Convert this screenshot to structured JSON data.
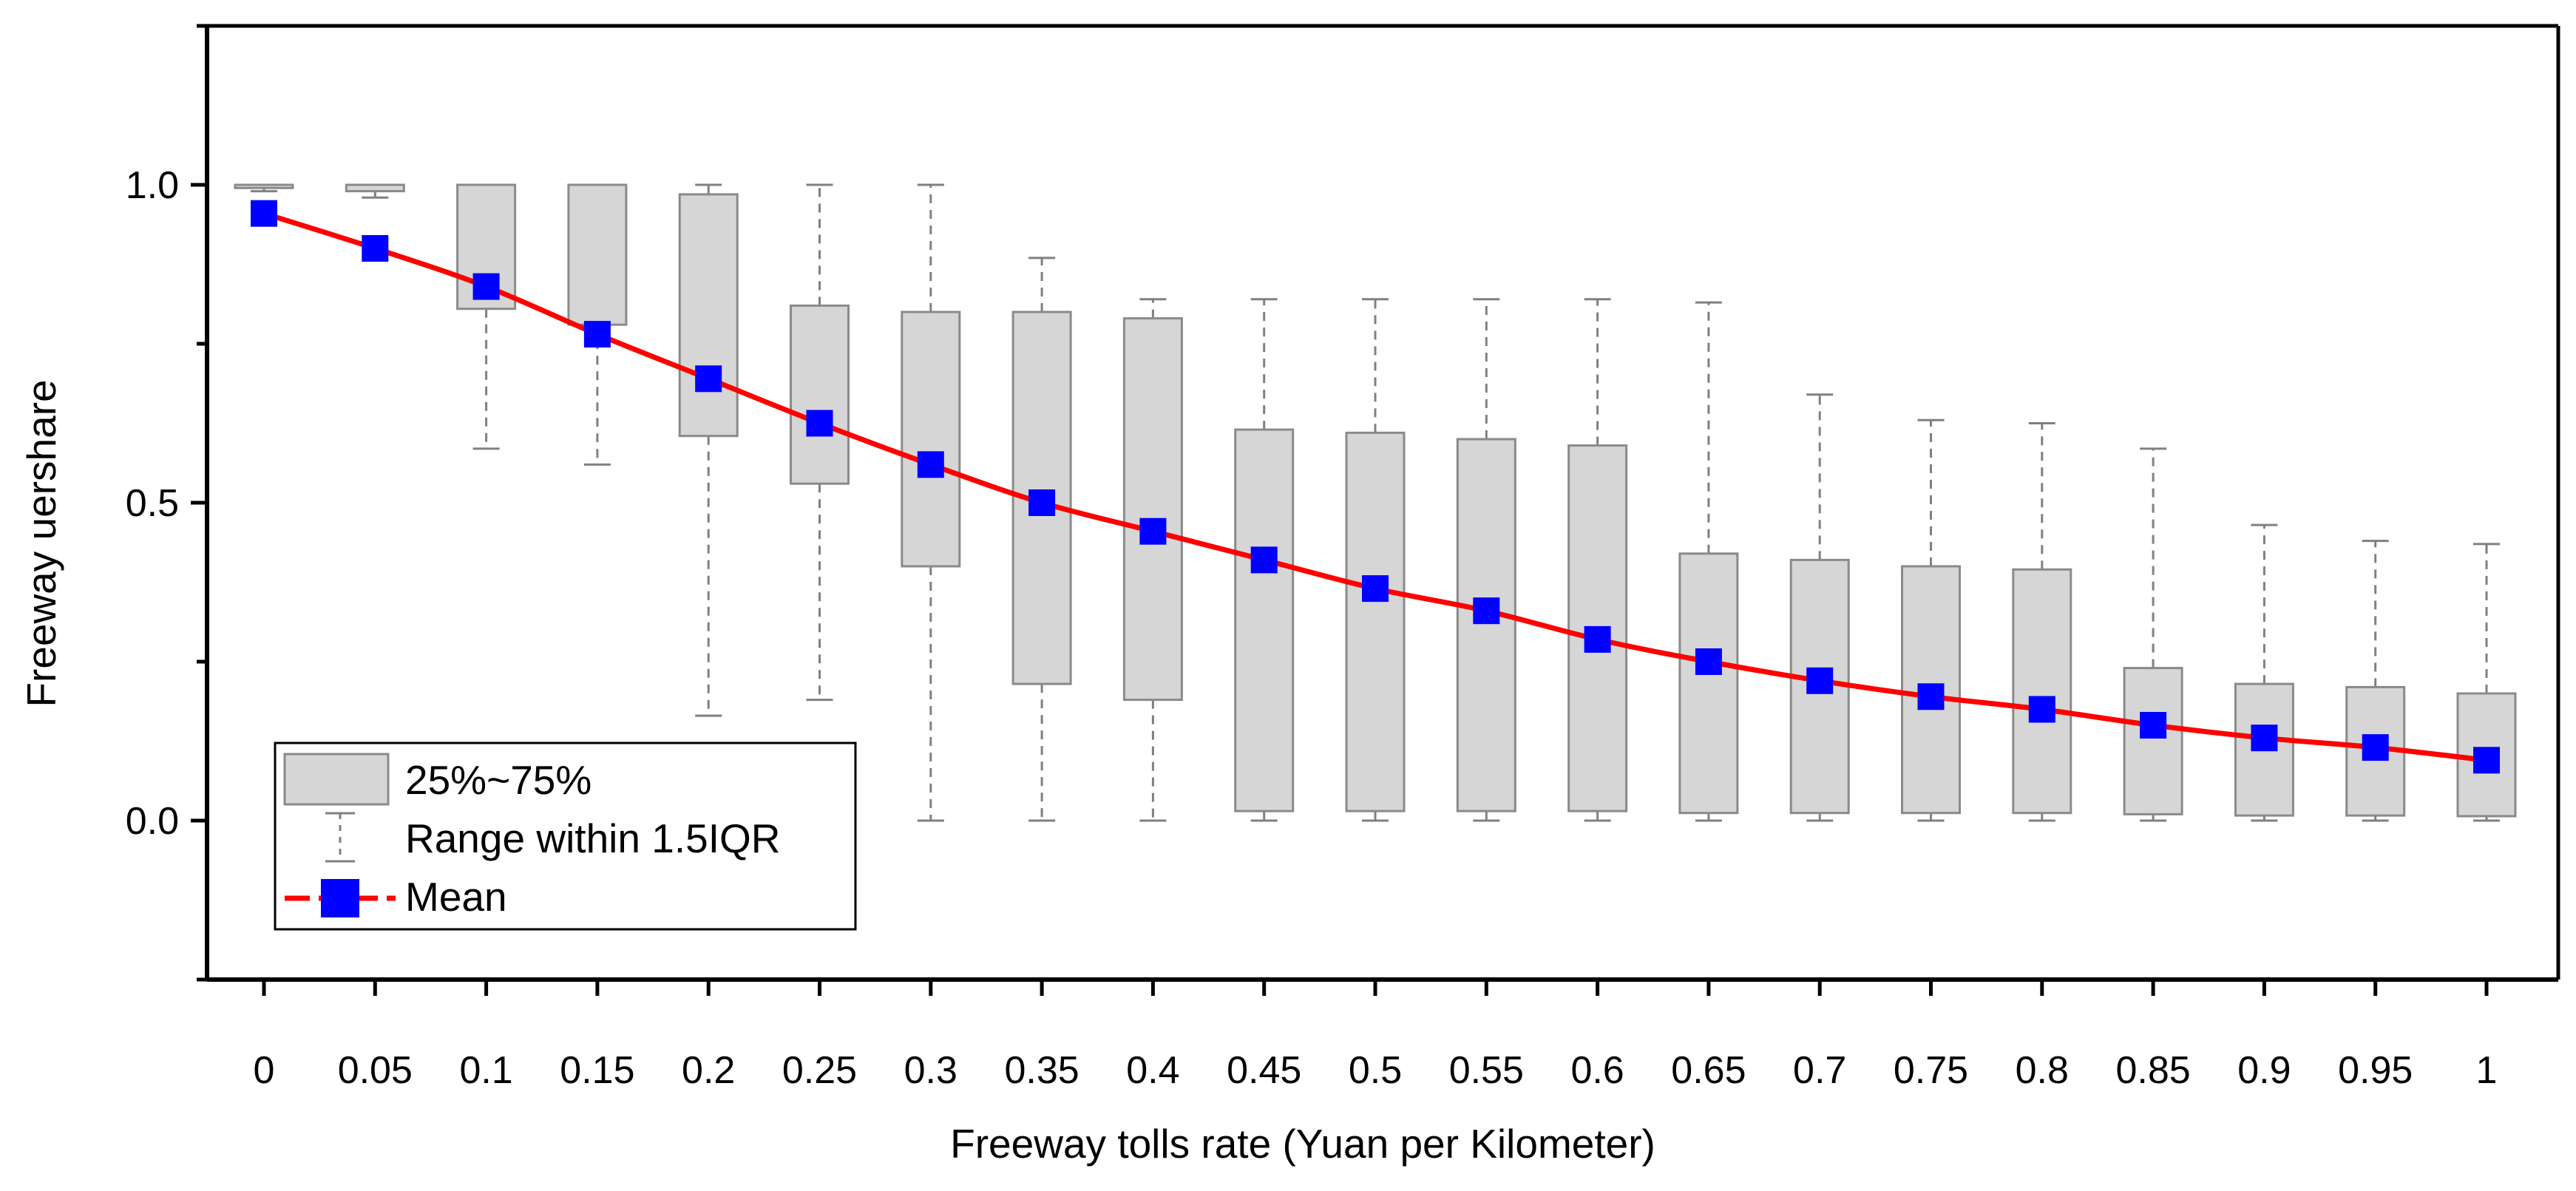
{
  "chart_data": {
    "type": "box",
    "xlabel": "Freeway tolls rate (Yuan per Kilometer)",
    "ylabel": "Freeway uershare",
    "ylim": [
      -0.25,
      1.25
    ],
    "yticks": [
      "0.0",
      "0.5",
      "1.0"
    ],
    "categories": [
      "0",
      "0.05",
      "0.1",
      "0.15",
      "0.2",
      "0.25",
      "0.3",
      "0.35",
      "0.4",
      "0.45",
      "0.5",
      "0.55",
      "0.6",
      "0.65",
      "0.7",
      "0.75",
      "0.8",
      "0.85",
      "0.9",
      "0.95",
      "1"
    ],
    "q1": [
      0.995,
      0.99,
      0.805,
      0.78,
      0.605,
      0.53,
      0.4,
      0.215,
      0.19,
      0.015,
      0.015,
      0.015,
      0.015,
      0.012,
      0.012,
      0.012,
      0.012,
      0.01,
      0.008,
      0.008,
      0.007
    ],
    "q3": [
      1.0,
      1.0,
      1.0,
      1.0,
      0.985,
      0.81,
      0.8,
      0.8,
      0.79,
      0.615,
      0.61,
      0.6,
      0.59,
      0.42,
      0.41,
      0.4,
      0.395,
      0.24,
      0.215,
      0.21,
      0.2
    ],
    "lower": [
      0.99,
      0.98,
      0.585,
      0.56,
      0.165,
      0.19,
      0.0,
      0.0,
      0.0,
      0.0,
      0.0,
      0.0,
      0.0,
      0.0,
      0.0,
      0.0,
      0.0,
      0.0,
      0.0,
      0.0,
      0.0
    ],
    "upper": [
      1.0,
      1.0,
      1.0,
      1.0,
      1.0,
      1.0,
      1.0,
      0.885,
      0.82,
      0.82,
      0.82,
      0.82,
      0.82,
      0.815,
      0.67,
      0.63,
      0.625,
      0.585,
      0.465,
      0.44,
      0.435
    ],
    "mean": [
      0.955,
      0.9,
      0.84,
      0.765,
      0.695,
      0.625,
      0.56,
      0.5,
      0.455,
      0.41,
      0.365,
      0.33,
      0.285,
      0.25,
      0.22,
      0.195,
      0.175,
      0.15,
      0.13,
      0.115,
      0.095
    ],
    "legend": {
      "box": "25%~75%",
      "whisker": "Range within 1.5IQR",
      "mean": "Mean"
    },
    "colors": {
      "box_fill": "#d6d6d6",
      "box_stroke": "#8a8a8a",
      "whisker": "#808080",
      "mean_line": "#ff0000",
      "mean_marker": "#0000ff",
      "axis": "#000000"
    }
  }
}
